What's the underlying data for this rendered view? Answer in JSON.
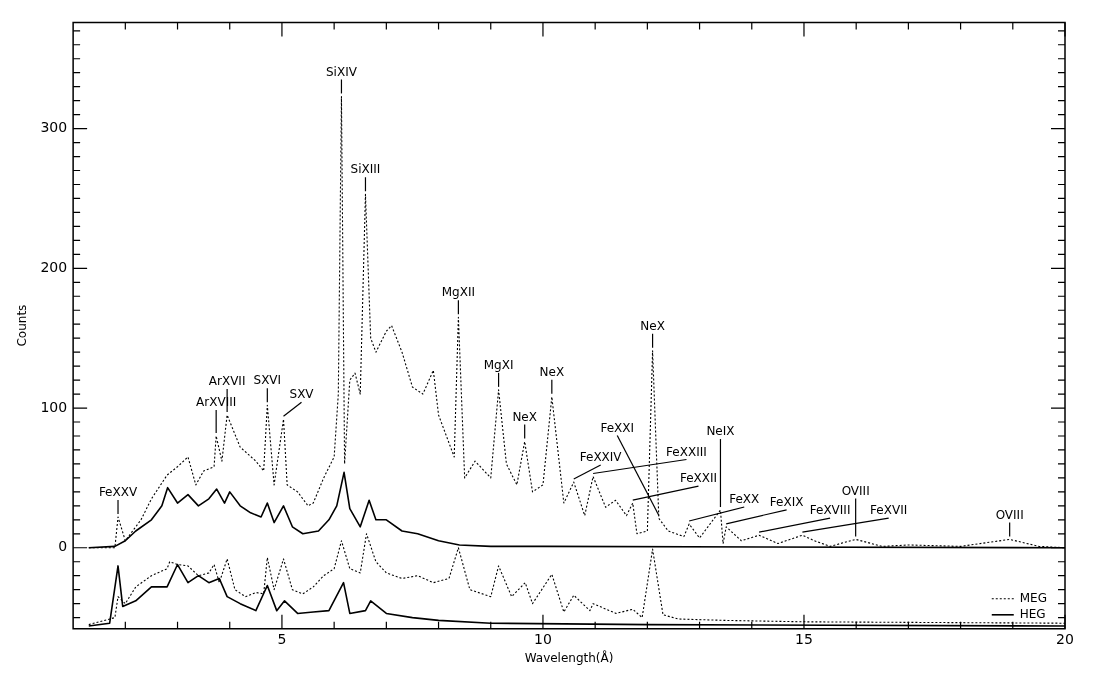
{
  "chart_data": {
    "type": "line",
    "xlabel": "Wavelength(Å)",
    "ylabel": "Counts",
    "xlim": [
      1,
      20
    ],
    "ylim": [
      -58,
      376
    ],
    "marker": "none",
    "legend": "bottom right",
    "xticks": [
      {
        "value": 2,
        "label": null
      },
      {
        "value": 3,
        "label": null
      },
      {
        "value": 4,
        "label": null
      },
      5,
      {
        "value": 6,
        "label": null
      },
      {
        "value": 7,
        "label": null
      },
      {
        "value": 8,
        "label": null
      },
      {
        "value": 9,
        "label": null
      },
      10,
      {
        "value": 11,
        "label": null
      },
      {
        "value": 12,
        "label": null
      },
      {
        "value": 13,
        "label": null
      },
      {
        "value": 14,
        "label": null
      },
      15,
      {
        "value": 16,
        "label": null
      },
      {
        "value": 17,
        "label": null
      },
      {
        "value": 18,
        "label": null
      },
      {
        "value": 19,
        "label": null
      },
      20
    ],
    "yticks": [
      {
        "value": -50,
        "label": null
      },
      {
        "value": -40,
        "label": null
      },
      {
        "value": -30,
        "label": null
      },
      {
        "value": -20,
        "label": null
      },
      {
        "value": -10,
        "label": null
      },
      0,
      {
        "value": 10,
        "label": null
      },
      {
        "value": 20,
        "label": null
      },
      {
        "value": 30,
        "label": null
      },
      {
        "value": 40,
        "label": null
      },
      {
        "value": 50,
        "label": null
      },
      {
        "value": 60,
        "label": null
      },
      {
        "value": 70,
        "label": null
      },
      {
        "value": 80,
        "label": null
      },
      {
        "value": 90,
        "label": null
      },
      100,
      {
        "value": 110,
        "label": null
      },
      {
        "value": 120,
        "label": null
      },
      {
        "value": 130,
        "label": null
      },
      {
        "value": 140,
        "label": null
      },
      {
        "value": 150,
        "label": null
      },
      {
        "value": 160,
        "label": null
      },
      {
        "value": 170,
        "label": null
      },
      {
        "value": 180,
        "label": null
      },
      {
        "value": 190,
        "label": null
      },
      200,
      {
        "value": 210,
        "label": null
      },
      {
        "value": 220,
        "label": null
      },
      {
        "value": 230,
        "label": null
      },
      {
        "value": 240,
        "label": null
      },
      {
        "value": 250,
        "label": null
      },
      {
        "value": 260,
        "label": null
      },
      {
        "value": 270,
        "label": null
      },
      {
        "value": 280,
        "label": null
      },
      {
        "value": 290,
        "label": null
      },
      300,
      {
        "value": 310,
        "label": null
      },
      {
        "value": 320,
        "label": null
      },
      {
        "value": 330,
        "label": null
      },
      {
        "value": 340,
        "label": null
      },
      {
        "value": 350,
        "label": null
      },
      {
        "value": 360,
        "label": null
      },
      {
        "value": 370,
        "label": null
      }
    ],
    "series": [
      {
        "color": "#000000",
        "line_style": "dotted",
        "x": [
          1.3,
          1.8,
          1.86,
          2.0,
          2.3,
          2.5,
          2.8,
          3.0,
          3.2,
          3.35,
          3.5,
          3.7,
          3.74,
          3.85,
          3.95,
          4.2,
          4.5,
          4.65,
          4.72,
          4.85,
          5.03,
          5.1,
          5.3,
          5.5,
          5.6,
          5.8,
          6.0,
          6.08,
          6.14,
          6.2,
          6.3,
          6.4,
          6.5,
          6.6,
          6.7,
          6.8,
          7.0,
          7.1,
          7.3,
          7.5,
          7.7,
          7.9,
          8.0,
          8.2,
          8.3,
          8.38,
          8.5,
          8.7,
          9.0,
          9.15,
          9.3,
          9.5,
          9.65,
          9.8,
          10.0,
          10.17,
          10.4,
          10.59,
          10.8,
          10.96,
          11.2,
          11.39,
          11.6,
          11.72,
          11.8,
          12.0,
          12.1,
          12.22,
          12.4,
          12.7,
          12.8,
          13.0,
          13.4,
          13.45,
          13.51,
          13.8,
          14.14,
          14.5,
          14.97,
          15.2,
          15.5,
          15.99,
          16.5,
          17.0,
          18.0,
          18.94,
          19.5,
          20.0
        ],
        "values": [
          0,
          0,
          22,
          5,
          20,
          35,
          52,
          58,
          65,
          45,
          55,
          58,
          80,
          62,
          95,
          72,
          62,
          55,
          102,
          45,
          92,
          45,
          40,
          30,
          32,
          50,
          65,
          110,
          323,
          60,
          120,
          125,
          110,
          253,
          150,
          140,
          155,
          159,
          140,
          115,
          110,
          127,
          95,
          75,
          65,
          165,
          50,
          62,
          50,
          113,
          60,
          45,
          76,
          40,
          45,
          108,
          32,
          47,
          23,
          51,
          29,
          34,
          23,
          32,
          10,
          12,
          141,
          21,
          12,
          8,
          17,
          7,
          27,
          3,
          15,
          5,
          9,
          3,
          9,
          5,
          1,
          6,
          1,
          2,
          1,
          6,
          1,
          0
        ]
      },
      {
        "color": "#000000",
        "line_style": "solid",
        "x": [
          1.3,
          1.8,
          2.0,
          2.2,
          2.5,
          2.7,
          2.81,
          3.0,
          3.2,
          3.4,
          3.6,
          3.75,
          3.9,
          4.0,
          4.2,
          4.4,
          4.6,
          4.72,
          4.85,
          5.03,
          5.2,
          5.4,
          5.7,
          5.9,
          6.05,
          6.19,
          6.3,
          6.5,
          6.67,
          6.8,
          7.0,
          7.3,
          7.6,
          8.0,
          8.4,
          9.0,
          10.0,
          20.0
        ],
        "values": [
          0,
          1,
          5,
          12,
          20,
          30,
          43,
          32,
          38,
          30,
          35,
          42,
          32,
          40,
          30,
          25,
          22,
          32,
          18,
          30,
          15,
          10,
          12,
          20,
          30,
          54,
          28,
          15,
          34,
          20,
          20,
          12,
          10,
          5,
          2,
          1,
          1,
          0
        ]
      },
      {
        "name": "MEG",
        "color": "#000000",
        "line_style": "dotted",
        "x": [
          1.3,
          1.8,
          1.86,
          2.0,
          2.2,
          2.5,
          2.8,
          2.85,
          3.0,
          3.2,
          3.4,
          3.6,
          3.7,
          3.8,
          3.95,
          4.1,
          4.3,
          4.5,
          4.65,
          4.72,
          4.85,
          5.03,
          5.2,
          5.4,
          5.6,
          5.8,
          6.0,
          6.14,
          6.3,
          6.5,
          6.62,
          6.8,
          7.0,
          7.3,
          7.6,
          7.9,
          8.2,
          8.38,
          8.6,
          9.0,
          9.15,
          9.4,
          9.66,
          9.8,
          10.17,
          10.4,
          10.59,
          10.9,
          10.96,
          11.4,
          11.72,
          11.9,
          12.1,
          12.3,
          12.6,
          13.5,
          15.0,
          20.0
        ],
        "values": [
          -55,
          -50,
          -35,
          -40,
          -28,
          -20,
          -15,
          -10,
          -12,
          -13,
          -20,
          -18,
          -12,
          -25,
          -8,
          -30,
          -35,
          -32,
          -33,
          -7,
          -30,
          -8,
          -30,
          -33,
          -28,
          -20,
          -15,
          5,
          -15,
          -18,
          10,
          -10,
          -18,
          -22,
          -20,
          -25,
          -22,
          0,
          -30,
          -35,
          -13,
          -35,
          -25,
          -40,
          -19,
          -46,
          -34,
          -45,
          -40,
          -47,
          -44,
          -50,
          -1,
          -48,
          -51,
          -52,
          -53,
          -54
        ]
      },
      {
        "name": "HEG",
        "color": "#000000",
        "line_style": "solid",
        "x": [
          1.3,
          1.7,
          1.86,
          1.95,
          2.2,
          2.5,
          2.8,
          3.0,
          3.2,
          3.4,
          3.6,
          3.8,
          3.95,
          4.2,
          4.5,
          4.72,
          4.9,
          5.05,
          5.3,
          5.6,
          5.9,
          6.18,
          6.3,
          6.6,
          6.7,
          7.0,
          7.5,
          8.0,
          9.0,
          12.0,
          20.0
        ],
        "values": [
          -56,
          -54,
          -13,
          -42,
          -38,
          -28,
          -28,
          -12,
          -25,
          -20,
          -25,
          -22,
          -35,
          -40,
          -45,
          -27,
          -45,
          -38,
          -47,
          -46,
          -45,
          -25,
          -47,
          -45,
          -38,
          -47,
          -50,
          -52,
          -54,
          -55,
          -56
        ]
      }
    ],
    "annotations": [
      {
        "text": "FeXXV",
        "x": 1.86,
        "y": 22
      },
      {
        "text": "ArXVIII",
        "x": 3.74,
        "y": 80
      },
      {
        "text": "ArXVII",
        "x": 3.95,
        "y": 95
      },
      {
        "text": "SXVI",
        "x": 4.72,
        "y": 102
      },
      {
        "text": "SXV",
        "x": 5.03,
        "y": 92
      },
      {
        "text": "SiXIV",
        "x": 6.14,
        "y": 323
      },
      {
        "text": "SiXIII",
        "x": 6.6,
        "y": 253
      },
      {
        "text": "MgXII",
        "x": 8.38,
        "y": 165
      },
      {
        "text": "MgXI",
        "x": 9.15,
        "y": 113
      },
      {
        "text": "NeX",
        "x": 9.65,
        "y": 76
      },
      {
        "text": "NeX",
        "x": 10.17,
        "y": 108
      },
      {
        "text": "FeXXIV",
        "x": 10.59,
        "y": 47
      },
      {
        "text": "FeXXIII",
        "x": 10.96,
        "y": 51
      },
      {
        "text": "FeXXII",
        "x": 11.72,
        "y": 32
      },
      {
        "text": "NeX",
        "x": 12.1,
        "y": 141
      },
      {
        "text": "FeXXI",
        "x": 12.22,
        "y": 21
      },
      {
        "text": "FeXX",
        "x": 12.8,
        "y": 17
      },
      {
        "text": "NeIX",
        "x": 13.4,
        "y": 27
      },
      {
        "text": "FeXIX",
        "x": 13.51,
        "y": 15
      },
      {
        "text": "FeXVIII",
        "x": 14.14,
        "y": 9
      },
      {
        "text": "FeXVII",
        "x": 14.97,
        "y": 9
      },
      {
        "text": "OVIII",
        "x": 15.99,
        "y": 6
      },
      {
        "text": "OVIII",
        "x": 18.94,
        "y": 6
      }
    ]
  }
}
